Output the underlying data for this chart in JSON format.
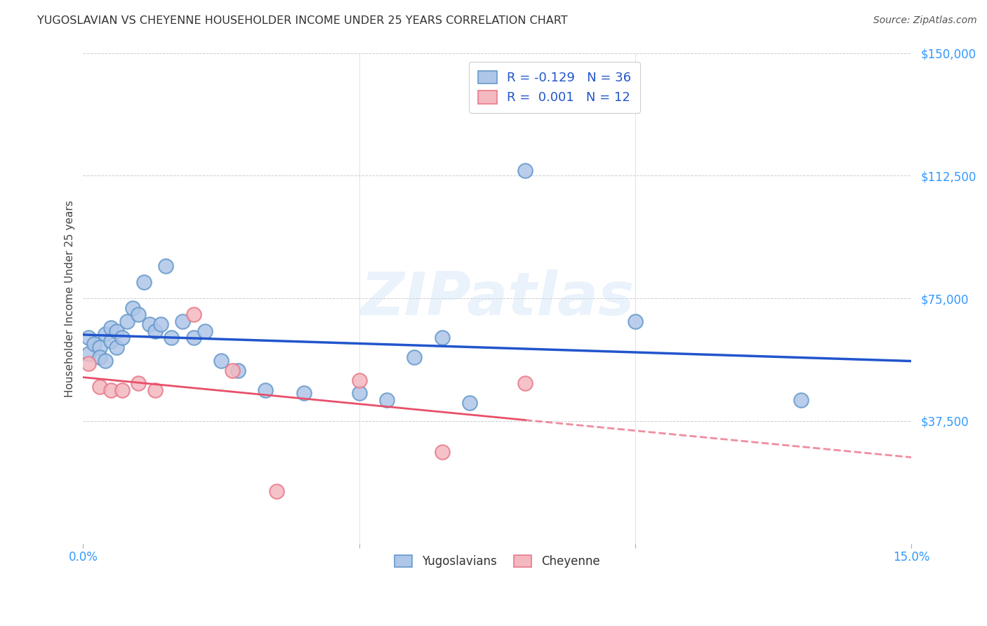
{
  "title": "YUGOSLAVIAN VS CHEYENNE HOUSEHOLDER INCOME UNDER 25 YEARS CORRELATION CHART",
  "source": "Source: ZipAtlas.com",
  "ylabel": "Householder Income Under 25 years",
  "yticks": [
    0,
    37500,
    75000,
    112500,
    150000
  ],
  "ytick_labels": [
    "",
    "$37,500",
    "$75,000",
    "$112,500",
    "$150,000"
  ],
  "xtick_positions": [
    0.0,
    0.05,
    0.1,
    0.15
  ],
  "xtick_labels": [
    "0.0%",
    "",
    "",
    "15.0%"
  ],
  "xlim": [
    0.0,
    0.15
  ],
  "ylim": [
    0,
    150000
  ],
  "background_color": "#ffffff",
  "grid_color": "#cccccc",
  "watermark_text": "ZIPatlas",
  "yugoslavian_color": "#aec6e8",
  "yugoslavian_edge": "#6699cc",
  "cheyenne_color": "#f4b8c1",
  "cheyenne_edge": "#e87a8a",
  "blue_line_color": "#2255cc",
  "pink_line_color": "#e8506a",
  "tick_label_color": "#3399ff",
  "legend_r1": "R = -0.129",
  "legend_n1": "N = 36",
  "legend_r2": "R =  0.001",
  "legend_n2": "N = 12",
  "yugoslavian_x": [
    0.001,
    0.001,
    0.002,
    0.003,
    0.003,
    0.004,
    0.004,
    0.005,
    0.005,
    0.006,
    0.006,
    0.007,
    0.008,
    0.009,
    0.01,
    0.011,
    0.012,
    0.013,
    0.014,
    0.015,
    0.016,
    0.018,
    0.02,
    0.022,
    0.025,
    0.028,
    0.033,
    0.04,
    0.05,
    0.055,
    0.06,
    0.065,
    0.07,
    0.08,
    0.1,
    0.13
  ],
  "yugoslavian_y": [
    63000,
    58000,
    61000,
    60000,
    57000,
    64000,
    56000,
    66000,
    62000,
    65000,
    60000,
    63000,
    68000,
    72000,
    70000,
    80000,
    67000,
    65000,
    67000,
    85000,
    63000,
    68000,
    63000,
    65000,
    56000,
    53000,
    47000,
    46000,
    46000,
    44000,
    57000,
    63000,
    43000,
    114000,
    68000,
    44000
  ],
  "cheyenne_x": [
    0.001,
    0.003,
    0.005,
    0.007,
    0.01,
    0.013,
    0.02,
    0.027,
    0.035,
    0.05,
    0.065,
    0.08
  ],
  "cheyenne_y": [
    55000,
    48000,
    47000,
    47000,
    49000,
    47000,
    70000,
    53000,
    16000,
    50000,
    28000,
    49000
  ]
}
